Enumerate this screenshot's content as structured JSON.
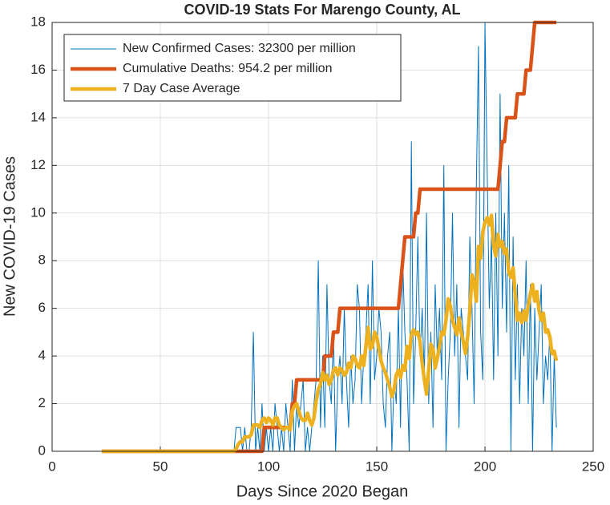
{
  "chart_data": {
    "type": "line",
    "title": "COVID-19 Stats For Marengo County, AL",
    "x_label": "Days Since 2020 Began",
    "y_label": "New COVID-19 Cases",
    "xlim": [
      0,
      250
    ],
    "xticks": [
      0,
      50,
      100,
      150,
      200,
      250
    ],
    "ylim": [
      0,
      18
    ],
    "yticks": [
      0,
      2,
      4,
      6,
      8,
      10,
      12,
      14,
      16,
      18
    ],
    "grid": true,
    "legend": "upper left",
    "x": [
      23,
      24,
      25,
      26,
      27,
      28,
      29,
      30,
      31,
      32,
      33,
      34,
      35,
      36,
      37,
      38,
      39,
      40,
      41,
      42,
      43,
      44,
      45,
      46,
      47,
      48,
      49,
      50,
      51,
      52,
      53,
      54,
      55,
      56,
      57,
      58,
      59,
      60,
      61,
      62,
      63,
      64,
      65,
      66,
      67,
      68,
      69,
      70,
      71,
      72,
      73,
      74,
      75,
      76,
      77,
      78,
      79,
      80,
      81,
      82,
      83,
      84,
      85,
      86,
      87,
      88,
      89,
      90,
      91,
      92,
      93,
      94,
      95,
      96,
      97,
      98,
      99,
      100,
      101,
      102,
      103,
      104,
      105,
      106,
      107,
      108,
      109,
      110,
      111,
      112,
      113,
      114,
      115,
      116,
      117,
      118,
      119,
      120,
      121,
      122,
      123,
      124,
      125,
      126,
      127,
      128,
      129,
      130,
      131,
      132,
      133,
      134,
      135,
      136,
      137,
      138,
      139,
      140,
      141,
      142,
      143,
      144,
      145,
      146,
      147,
      148,
      149,
      150,
      151,
      152,
      153,
      154,
      155,
      156,
      157,
      158,
      159,
      160,
      161,
      162,
      163,
      164,
      165,
      166,
      167,
      168,
      169,
      170,
      171,
      172,
      173,
      174,
      175,
      176,
      177,
      178,
      179,
      180,
      181,
      182,
      183,
      184,
      185,
      186,
      187,
      188,
      189,
      190,
      191,
      192,
      193,
      194,
      195,
      196,
      197,
      198,
      199,
      200,
      201,
      202,
      203,
      204,
      205,
      206,
      207,
      208,
      209,
      210,
      211,
      212,
      213,
      214,
      215,
      216,
      217,
      218,
      219,
      220,
      221,
      222,
      223,
      224,
      225,
      226,
      227,
      228,
      229,
      230,
      231,
      232,
      233
    ],
    "series": [
      {
        "name": "New Confirmed Cases: 32300 per million",
        "color": "#0072BD",
        "width": 1,
        "values": [
          0,
          0,
          0,
          0,
          0,
          0,
          0,
          0,
          0,
          0,
          0,
          0,
          0,
          0,
          0,
          0,
          0,
          0,
          0,
          0,
          0,
          0,
          0,
          0,
          0,
          0,
          0,
          0,
          0,
          0,
          0,
          0,
          0,
          0,
          0,
          0,
          0,
          0,
          0,
          0,
          0,
          0,
          0,
          0,
          0,
          0,
          0,
          0,
          0,
          0,
          0,
          0,
          0,
          0,
          0,
          0,
          0,
          0,
          0,
          0,
          0,
          0,
          1,
          1,
          1,
          0,
          1,
          0,
          0,
          1,
          5,
          0,
          1,
          0,
          2,
          0,
          1,
          0,
          1,
          0,
          2,
          1,
          0,
          1,
          0,
          2,
          1,
          0,
          3,
          0,
          2,
          1,
          2,
          3,
          0,
          1,
          0,
          1,
          2,
          3,
          8,
          1,
          4,
          1,
          7,
          3,
          2,
          5,
          0,
          3,
          4,
          2,
          6,
          3,
          1,
          4,
          2,
          3,
          7,
          6,
          2,
          4,
          5,
          7,
          2,
          8,
          3,
          4,
          6,
          5,
          2,
          1,
          4,
          5,
          0,
          3,
          2,
          6,
          1,
          8,
          5,
          3,
          0,
          13,
          2,
          5,
          9,
          4,
          6,
          3,
          10,
          2,
          5,
          1,
          7,
          4,
          6,
          3,
          12,
          0,
          3,
          5,
          10,
          4,
          7,
          1,
          6,
          5,
          4,
          3,
          9,
          6,
          2,
          11,
          17,
          5,
          3,
          18,
          12,
          6,
          9,
          3,
          10,
          4,
          15,
          6,
          10,
          5,
          12,
          0,
          9,
          3,
          7,
          2,
          6,
          4,
          8,
          2,
          7,
          0,
          6,
          3,
          5,
          7,
          2,
          4,
          3,
          5,
          0,
          4,
          1
        ]
      },
      {
        "name": "Cumulative Deaths: 954.2 per million",
        "color": "#D95319",
        "width": 4.5,
        "values": [
          0,
          0,
          0,
          0,
          0,
          0,
          0,
          0,
          0,
          0,
          0,
          0,
          0,
          0,
          0,
          0,
          0,
          0,
          0,
          0,
          0,
          0,
          0,
          0,
          0,
          0,
          0,
          0,
          0,
          0,
          0,
          0,
          0,
          0,
          0,
          0,
          0,
          0,
          0,
          0,
          0,
          0,
          0,
          0,
          0,
          0,
          0,
          0,
          0,
          0,
          0,
          0,
          0,
          0,
          0,
          0,
          0,
          0,
          0,
          0,
          0,
          0,
          0,
          0,
          0,
          0,
          0,
          0,
          0,
          0,
          0,
          0,
          0,
          0,
          0,
          1,
          1,
          1,
          1,
          1,
          1,
          1,
          1,
          1,
          1,
          1,
          1,
          1,
          2,
          2,
          3,
          3,
          3,
          3,
          3,
          3,
          3,
          3,
          3,
          3,
          3,
          3,
          3,
          4,
          4,
          4,
          4,
          5,
          5,
          5,
          6,
          6,
          6,
          6,
          6,
          6,
          6,
          6,
          6,
          6,
          6,
          6,
          6,
          6,
          6,
          6,
          6,
          6,
          6,
          6,
          6,
          6,
          6,
          6,
          6,
          6,
          6,
          6,
          7,
          8,
          9,
          9,
          9,
          9,
          9,
          10,
          10,
          11,
          11,
          11,
          11,
          11,
          11,
          11,
          11,
          11,
          11,
          11,
          11,
          11,
          11,
          11,
          11,
          11,
          11,
          11,
          11,
          11,
          11,
          11,
          11,
          11,
          11,
          11,
          11,
          11,
          11,
          11,
          11,
          11,
          11,
          11,
          11,
          11,
          12,
          13,
          13,
          14,
          14,
          14,
          14,
          14,
          15,
          15,
          15,
          15,
          16,
          16,
          16,
          17,
          18,
          18,
          18,
          18,
          18,
          18,
          18,
          18,
          18,
          18,
          18
        ]
      },
      {
        "name": "7 Day Case Average",
        "color": "#EDB120",
        "width": 4.5,
        "values": [
          0,
          0,
          0,
          0,
          0,
          0,
          0,
          0,
          0,
          0,
          0,
          0,
          0,
          0,
          0,
          0,
          0,
          0,
          0,
          0,
          0,
          0,
          0,
          0,
          0,
          0,
          0,
          0,
          0,
          0,
          0,
          0,
          0,
          0,
          0,
          0,
          0,
          0,
          0,
          0,
          0,
          0,
          0,
          0,
          0,
          0,
          0,
          0,
          0,
          0,
          0,
          0,
          0,
          0,
          0,
          0,
          0,
          0,
          0,
          0,
          0,
          0,
          0.1,
          0.3,
          0.4,
          0.4,
          0.6,
          0.6,
          0.6,
          0.7,
          1.1,
          1.1,
          1.1,
          1.0,
          1.3,
          1.4,
          1.2,
          1.4,
          1.3,
          1.1,
          1.4,
          1.4,
          1.1,
          1.0,
          0.9,
          1.0,
          1.0,
          0.9,
          1.7,
          1.9,
          2.0,
          1.7,
          1.4,
          1.3,
          1.3,
          1.6,
          1.3,
          1.1,
          1.4,
          2.1,
          2.6,
          2.8,
          3.3,
          3.0,
          3.2,
          2.8,
          3.0,
          3.4,
          3.5,
          3.2,
          3.5,
          3.4,
          3.2,
          3.3,
          3.7,
          3.5,
          4.0,
          3.9,
          3.6,
          3.5,
          4.0,
          3.6,
          4.4,
          5.2,
          4.3,
          4.4,
          5.0,
          4.8,
          4.3,
          3.8,
          3.5,
          3.3,
          3.0,
          2.7,
          2.3,
          2.6,
          3.2,
          3.4,
          3.1,
          3.6,
          3.4,
          4.4,
          3.9,
          4.9,
          5.1,
          4.9,
          5.0,
          4.6,
          3.7,
          3.0,
          2.4,
          3.4,
          4.5,
          4.3,
          3.5,
          3.9,
          4.4,
          5.0,
          4.9,
          5.5,
          6.4,
          6.1,
          5.5,
          5.2,
          4.9,
          5.6,
          5.0,
          4.6,
          4.1,
          4.8,
          5.9,
          7.4,
          7.1,
          6.3,
          8.6,
          8.1,
          9.2,
          9.6,
          9.8,
          9.5,
          9.9,
          8.6,
          8.2,
          9.1,
          8.6,
          8.8,
          8.3,
          8.5,
          7.5,
          7.3,
          7.7,
          6.6,
          5.5,
          5.8,
          5.4,
          5.9,
          5.5,
          6.1,
          6.6,
          7.0,
          6.3,
          6.7,
          5.9,
          5.5,
          5.8,
          5.0,
          5.1,
          4.8,
          4.1,
          4.2,
          3.8
        ]
      }
    ]
  }
}
